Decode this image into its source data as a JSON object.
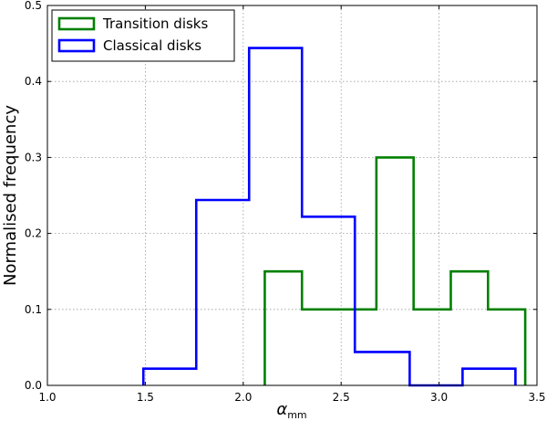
{
  "chart_data": {
    "type": "step-histogram",
    "xlabel_symbol": "α",
    "xlabel_subscript": "mm",
    "ylabel": "Normalised frequency",
    "xlim": [
      1.0,
      3.5
    ],
    "ylim": [
      0.0,
      0.5
    ],
    "xticks": [
      1.0,
      1.5,
      2.0,
      2.5,
      3.0,
      3.5
    ],
    "xtick_labels": [
      "1.0",
      "1.5",
      "2.0",
      "2.5",
      "3.0",
      "3.5"
    ],
    "yticks": [
      0.0,
      0.1,
      0.2,
      0.3,
      0.4,
      0.5
    ],
    "ytick_labels": [
      "0.0",
      "0.1",
      "0.2",
      "0.3",
      "0.4",
      "0.5"
    ],
    "grid": true,
    "legend_position": "top-left",
    "series": [
      {
        "name": "Transition disks",
        "color": "#008000",
        "edges": [
          2.11,
          2.3,
          2.49,
          2.68,
          2.87,
          3.06,
          3.25,
          3.44
        ],
        "values": [
          0.15,
          0.1,
          0.1,
          0.3,
          0.1,
          0.15,
          0.1
        ]
      },
      {
        "name": "Classical disks",
        "color": "#0000ff",
        "edges": [
          1.49,
          1.76,
          2.03,
          2.3,
          2.57,
          2.85,
          3.12,
          3.39
        ],
        "values": [
          0.022,
          0.244,
          0.444,
          0.222,
          0.044,
          0.0,
          0.022
        ]
      }
    ]
  }
}
